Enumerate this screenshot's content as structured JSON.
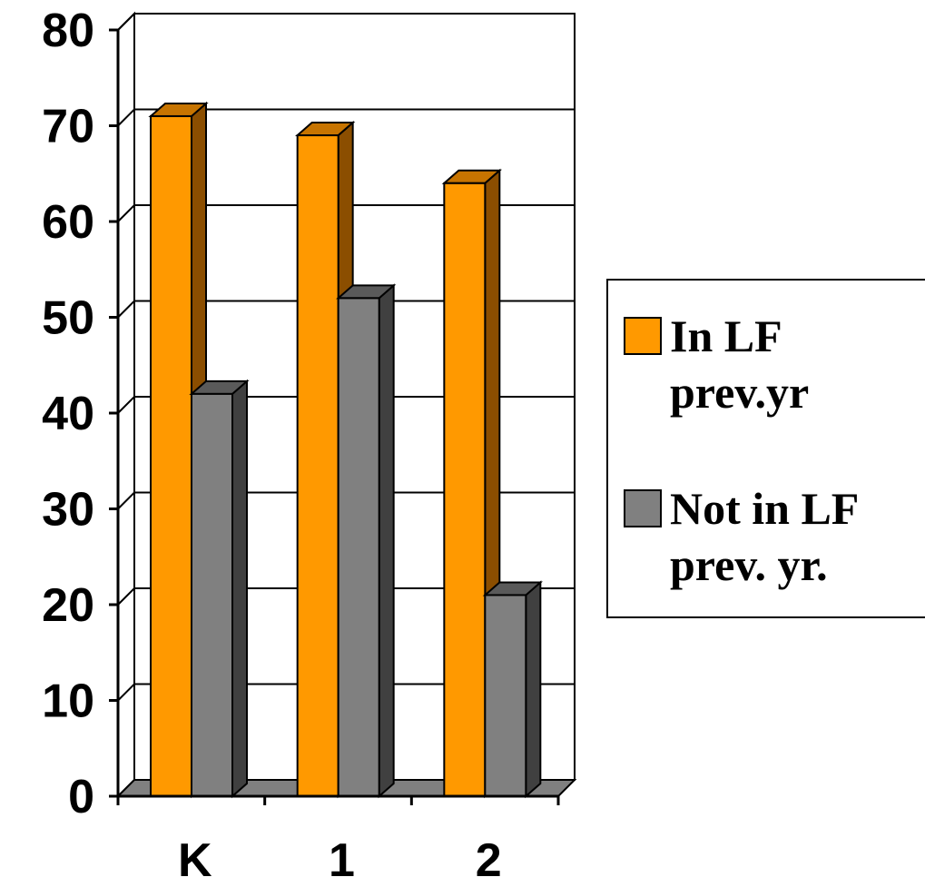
{
  "chart_data": {
    "type": "bar",
    "title": "",
    "xlabel": "",
    "ylabel": "",
    "categories": [
      "K",
      "1",
      "2"
    ],
    "ylim": [
      0,
      80
    ],
    "yticks": [
      "0",
      "10",
      "20",
      "30",
      "40",
      "50",
      "60",
      "70",
      "80"
    ],
    "grid": true,
    "legend_position": "right",
    "style": "3d-clustered-bar",
    "series": [
      {
        "name": "In LF prev.yr",
        "legend_lines": [
          "In LF",
          "prev.yr"
        ],
        "values": [
          71,
          69,
          64
        ],
        "color": "#FF9900",
        "side_color": "#8B4E00",
        "top_color": "#C77400"
      },
      {
        "name": "Not in LF prev. yr.",
        "legend_lines": [
          "Not in LF",
          "prev. yr."
        ],
        "values": [
          42,
          52,
          21
        ],
        "color": "#808080",
        "side_color": "#404040",
        "top_color": "#5A5A5A"
      }
    ]
  }
}
